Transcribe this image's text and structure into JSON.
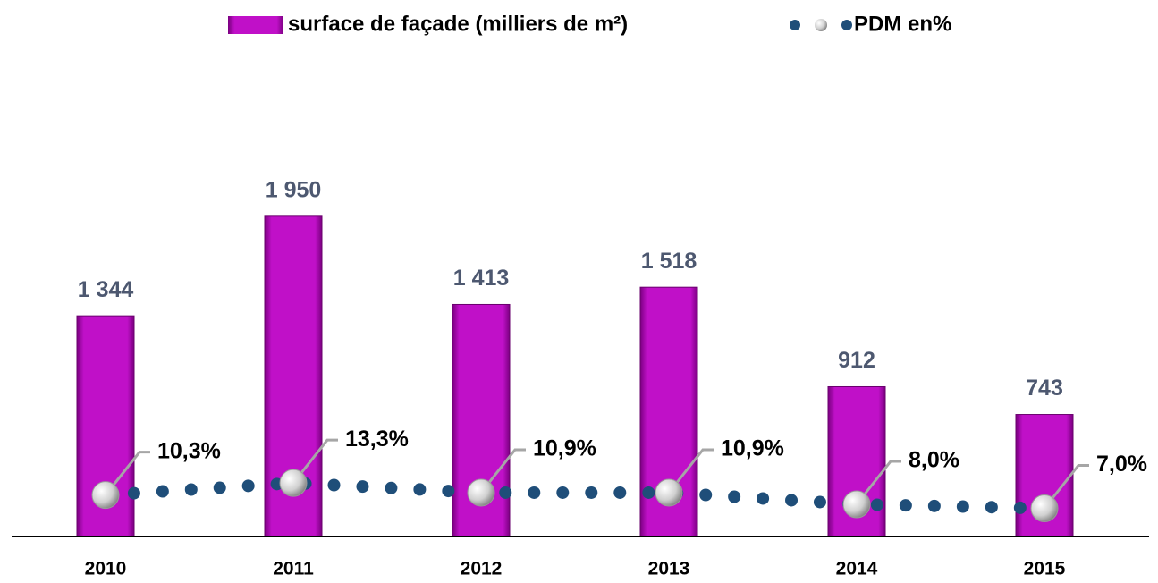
{
  "chart_data": {
    "type": "bar",
    "categories": [
      "2010",
      "2011",
      "2012",
      "2013",
      "2014",
      "2015"
    ],
    "series": [
      {
        "name": "surface de façade (milliers de m²)",
        "color": "#c010c8",
        "values": [
          1344,
          1950,
          1413,
          1518,
          912,
          743
        ],
        "value_labels": [
          "1 344",
          "1 950",
          "1 413",
          "1 518",
          "912",
          "743"
        ]
      },
      {
        "name": "PDM en%",
        "type": "line",
        "axis": "y2",
        "color": "#1f4e79",
        "values": [
          10.3,
          13.3,
          10.9,
          10.9,
          8.0,
          7.0
        ],
        "value_labels": [
          "10,3%",
          "13,3%",
          "10,9%",
          "10,9%",
          "8,0%",
          "7,0%"
        ]
      }
    ],
    "ylim": [
      0,
      2450
    ],
    "y2lim": [
      0,
      100
    ]
  }
}
